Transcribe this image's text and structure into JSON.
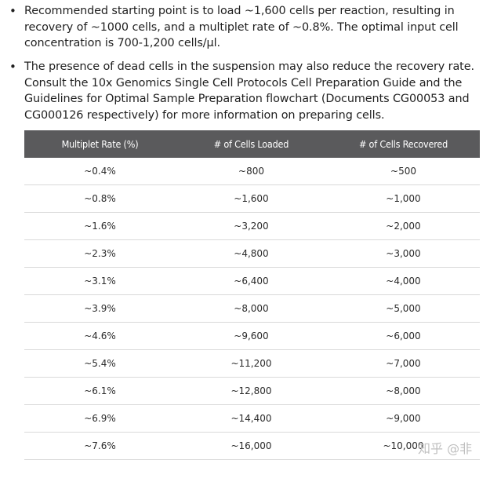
{
  "bullets": [
    "Recommended starting point is to load ~1,600 cells per reaction, resulting in recovery of ~1000 cells, and a multiplet rate of ~0.8%. The optimal input cell concentration is 700-1,200 cells/µl.",
    "The presence of dead cells in the suspension may also reduce the recovery rate. Consult the 10x Genomics Single Cell Protocols Cell Preparation Guide and the Guidelines for Optimal Sample Preparation flowchart (Documents CG00053 and CG000126 respectively) for more information on preparing cells."
  ],
  "bullet_glyph": "•",
  "table": {
    "headers": [
      "Multiplet Rate (%)",
      "# of Cells Loaded",
      "# of Cells Recovered"
    ],
    "rows": [
      [
        "~0.4%",
        "~800",
        "~500"
      ],
      [
        "~0.8%",
        "~1,600",
        "~1,000"
      ],
      [
        "~1.6%",
        "~3,200",
        "~2,000"
      ],
      [
        "~2.3%",
        "~4,800",
        "~3,000"
      ],
      [
        "~3.1%",
        "~6,400",
        "~4,000"
      ],
      [
        "~3.9%",
        "~8,000",
        "~5,000"
      ],
      [
        "~4.6%",
        "~9,600",
        "~6,000"
      ],
      [
        "~5.4%",
        "~11,200",
        "~7,000"
      ],
      [
        "~6.1%",
        "~12,800",
        "~8,000"
      ],
      [
        "~6.9%",
        "~14,400",
        "~9,000"
      ],
      [
        "~7.6%",
        "~16,000",
        "~10,000"
      ]
    ],
    "header_color": "#5a5a5c"
  },
  "watermark": "知乎 @非"
}
